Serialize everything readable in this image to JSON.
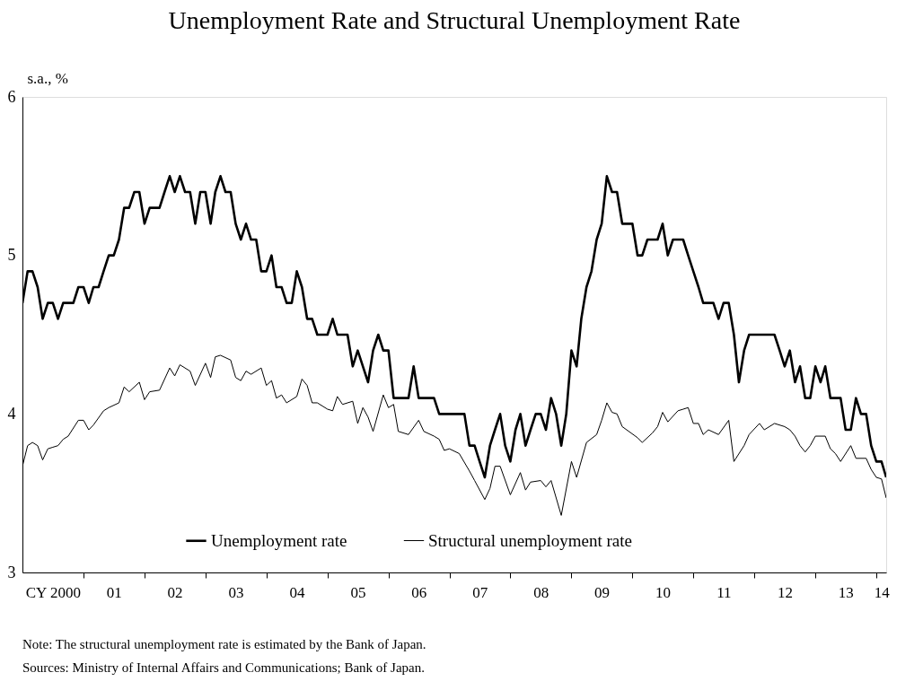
{
  "chart_data": {
    "type": "line",
    "title": "Unemployment Rate and Structural Unemployment Rate",
    "ylabel": "s.a., %",
    "annotations": [
      "Note: The structural unemployment rate is estimated by the Bank of Japan.",
      "Sources: Ministry of Internal Affairs and Communications; Bank of Japan."
    ],
    "x": [
      "2000-01",
      "2000-02",
      "2000-03",
      "2000-04",
      "2000-05",
      "2000-06",
      "2000-07",
      "2000-08",
      "2000-09",
      "2000-10",
      "2000-11",
      "2000-12",
      "2001-01",
      "2001-02",
      "2001-03",
      "2001-04",
      "2001-05",
      "2001-06",
      "2001-07",
      "2001-08",
      "2001-09",
      "2001-10",
      "2001-11",
      "2001-12",
      "2002-01",
      "2002-02",
      "2002-03",
      "2002-04",
      "2002-05",
      "2002-06",
      "2002-07",
      "2002-08",
      "2002-09",
      "2002-10",
      "2002-11",
      "2002-12",
      "2003-01",
      "2003-02",
      "2003-03",
      "2003-04",
      "2003-05",
      "2003-06",
      "2003-07",
      "2003-08",
      "2003-09",
      "2003-10",
      "2003-11",
      "2003-12",
      "2004-01",
      "2004-02",
      "2004-03",
      "2004-04",
      "2004-05",
      "2004-06",
      "2004-07",
      "2004-08",
      "2004-09",
      "2004-10",
      "2004-11",
      "2004-12",
      "2005-01",
      "2005-02",
      "2005-03",
      "2005-04",
      "2005-05",
      "2005-06",
      "2005-07",
      "2005-08",
      "2005-09",
      "2005-10",
      "2005-11",
      "2005-12",
      "2006-01",
      "2006-02",
      "2006-03",
      "2006-04",
      "2006-05",
      "2006-06",
      "2006-07",
      "2006-08",
      "2006-09",
      "2006-10",
      "2006-11",
      "2006-12",
      "2007-01",
      "2007-02",
      "2007-03",
      "2007-04",
      "2007-05",
      "2007-06",
      "2007-07",
      "2007-08",
      "2007-09",
      "2007-10",
      "2007-11",
      "2007-12",
      "2008-01",
      "2008-02",
      "2008-03",
      "2008-04",
      "2008-05",
      "2008-06",
      "2008-07",
      "2008-08",
      "2008-09",
      "2008-10",
      "2008-11",
      "2008-12",
      "2009-01",
      "2009-02",
      "2009-03",
      "2009-04",
      "2009-05",
      "2009-06",
      "2009-07",
      "2009-08",
      "2009-09",
      "2009-10",
      "2009-11",
      "2009-12",
      "2010-01",
      "2010-02",
      "2010-03",
      "2010-04",
      "2010-05",
      "2010-06",
      "2010-07",
      "2010-08",
      "2010-09",
      "2010-10",
      "2010-11",
      "2010-12",
      "2011-01",
      "2011-02",
      "2011-03",
      "2011-04",
      "2011-05",
      "2011-06",
      "2011-07",
      "2011-08",
      "2011-09",
      "2011-10",
      "2011-11",
      "2011-12",
      "2012-01",
      "2012-02",
      "2012-03",
      "2012-04",
      "2012-05",
      "2012-06",
      "2012-07",
      "2012-08",
      "2012-09",
      "2012-10",
      "2012-11",
      "2012-12",
      "2013-01",
      "2013-02",
      "2013-03",
      "2013-04",
      "2013-05",
      "2013-06",
      "2013-07",
      "2013-08",
      "2013-09",
      "2013-10",
      "2013-11",
      "2013-12",
      "2014-01",
      "2014-02",
      "2014-03"
    ],
    "series": [
      {
        "name": "Unemployment rate",
        "color": "#000000",
        "values": [
          4.7,
          4.9,
          4.9,
          4.8,
          4.6,
          4.7,
          4.7,
          4.6,
          4.7,
          4.7,
          4.7,
          4.8,
          4.8,
          4.7,
          4.8,
          4.8,
          4.9,
          5.0,
          5.0,
          5.1,
          5.3,
          5.3,
          5.4,
          5.4,
          5.2,
          5.3,
          5.3,
          5.3,
          5.4,
          5.5,
          5.4,
          5.5,
          5.4,
          5.4,
          5.2,
          5.4,
          5.4,
          5.2,
          5.4,
          5.5,
          5.4,
          5.4,
          5.2,
          5.1,
          5.2,
          5.1,
          5.1,
          4.9,
          4.9,
          5.0,
          4.8,
          4.8,
          4.7,
          4.7,
          4.9,
          4.8,
          4.6,
          4.6,
          4.5,
          4.5,
          4.5,
          4.6,
          4.5,
          4.5,
          4.5,
          4.3,
          4.4,
          4.3,
          4.2,
          4.4,
          4.5,
          4.4,
          4.4,
          4.1,
          4.1,
          4.1,
          4.1,
          4.3,
          4.1,
          4.1,
          4.1,
          4.1,
          4.0,
          4.0,
          4.0,
          4.0,
          4.0,
          4.0,
          3.8,
          3.8,
          3.7,
          3.6,
          3.8,
          3.9,
          4.0,
          3.8,
          3.7,
          3.9,
          4.0,
          3.8,
          3.9,
          4.0,
          4.0,
          3.9,
          4.1,
          4.0,
          3.8,
          4.0,
          4.4,
          4.3,
          4.6,
          4.8,
          4.9,
          5.1,
          5.2,
          5.5,
          5.4,
          5.4,
          5.2,
          5.2,
          5.2,
          5.0,
          5.0,
          5.1,
          5.1,
          5.1,
          5.2,
          5.0,
          5.1,
          5.1,
          5.1,
          5.0,
          4.9,
          4.8,
          4.7,
          4.7,
          4.7,
          4.6,
          4.7,
          4.7,
          4.5,
          4.2,
          4.4,
          4.5,
          4.5,
          4.5,
          4.5,
          4.5,
          4.5,
          4.4,
          4.3,
          4.4,
          4.2,
          4.3,
          4.1,
          4.1,
          4.3,
          4.2,
          4.3,
          4.1,
          4.1,
          4.1,
          3.9,
          3.9,
          4.1,
          4.0,
          4.0,
          3.8,
          3.7,
          3.7,
          3.6
        ]
      },
      {
        "name": "Structural unemployment rate",
        "color": "#000000",
        "x": [
          "2000-01",
          "2000-02",
          "2000-03",
          "2000-04",
          "2000-05",
          "2000-06",
          "2000-07",
          "2000-08",
          "2000-09",
          "2000-10",
          "2000-12",
          "2001-01",
          "2001-02",
          "2001-03",
          "2001-05",
          "2001-06",
          "2001-08",
          "2001-09",
          "2001-10",
          "2001-12",
          "2002-01",
          "2002-02",
          "2002-04",
          "2002-06",
          "2002-07",
          "2002-08",
          "2002-10",
          "2002-11",
          "2003-01",
          "2003-02",
          "2003-03",
          "2003-04",
          "2003-06",
          "2003-07",
          "2003-08",
          "2003-09",
          "2003-10",
          "2003-12",
          "2004-01",
          "2004-02",
          "2004-03",
          "2004-04",
          "2004-05",
          "2004-07",
          "2004-08",
          "2004-09",
          "2004-10",
          "2004-11",
          "2005-01",
          "2005-02",
          "2005-03",
          "2005-04",
          "2005-06",
          "2005-07",
          "2005-08",
          "2005-09",
          "2005-10",
          "2005-12",
          "2006-01",
          "2006-02",
          "2006-03",
          "2006-05",
          "2006-07",
          "2006-08",
          "2006-10",
          "2006-11",
          "2006-12",
          "2007-01",
          "2007-03",
          "2007-05",
          "2007-06",
          "2007-08",
          "2007-09",
          "2007-10",
          "2007-11",
          "2008-01",
          "2008-03",
          "2008-04",
          "2008-05",
          "2008-07",
          "2008-08",
          "2008-09",
          "2008-11",
          "2009-01",
          "2009-02",
          "2009-04",
          "2009-06",
          "2009-07",
          "2009-08",
          "2009-09",
          "2009-10",
          "2009-11",
          "2010-02",
          "2010-03",
          "2010-05",
          "2010-06",
          "2010-07",
          "2010-08",
          "2010-10",
          "2010-11",
          "2010-12",
          "2011-01",
          "2011-02",
          "2011-03",
          "2011-04",
          "2011-06",
          "2011-08",
          "2011-09",
          "2011-11",
          "2011-12",
          "2012-02",
          "2012-03",
          "2012-05",
          "2012-07",
          "2012-08",
          "2012-09",
          "2012-10",
          "2012-11",
          "2012-12",
          "2013-01",
          "2013-03",
          "2013-04",
          "2013-05",
          "2013-06",
          "2013-08",
          "2013-09",
          "2013-11",
          "2013-12",
          "2014-01",
          "2014-02",
          "2014-03"
        ],
        "values": [
          3.67,
          3.8,
          3.82,
          3.8,
          3.71,
          3.78,
          3.79,
          3.8,
          3.84,
          3.86,
          3.96,
          3.96,
          3.9,
          3.93,
          4.02,
          4.04,
          4.07,
          4.17,
          4.14,
          4.2,
          4.09,
          4.14,
          4.15,
          4.29,
          4.24,
          4.31,
          4.27,
          4.18,
          4.32,
          4.23,
          4.36,
          4.37,
          4.34,
          4.23,
          4.21,
          4.27,
          4.25,
          4.29,
          4.18,
          4.21,
          4.1,
          4.12,
          4.07,
          4.11,
          4.22,
          4.18,
          4.07,
          4.07,
          4.03,
          4.02,
          4.11,
          4.06,
          4.08,
          3.94,
          4.04,
          3.98,
          3.89,
          4.12,
          4.04,
          4.06,
          3.89,
          3.87,
          3.96,
          3.89,
          3.86,
          3.84,
          3.77,
          3.78,
          3.75,
          3.64,
          3.58,
          3.46,
          3.53,
          3.67,
          3.67,
          3.49,
          3.63,
          3.52,
          3.57,
          3.58,
          3.54,
          3.58,
          3.36,
          3.7,
          3.6,
          3.82,
          3.87,
          3.96,
          4.07,
          4.01,
          4.0,
          3.92,
          3.85,
          3.82,
          3.88,
          3.92,
          4.01,
          3.95,
          4.02,
          4.03,
          4.04,
          3.94,
          3.94,
          3.87,
          3.9,
          3.87,
          3.96,
          3.7,
          3.8,
          3.87,
          3.94,
          3.9,
          3.94,
          3.92,
          3.9,
          3.86,
          3.8,
          3.76,
          3.8,
          3.86,
          3.86,
          3.78,
          3.75,
          3.7,
          3.8,
          3.72,
          3.72,
          3.65,
          3.6,
          3.59,
          3.47
        ]
      }
    ],
    "xlim": [
      "2000-01",
      "2014-03"
    ],
    "xticks": [
      {
        "value": "2001-01",
        "label": null
      },
      {
        "value": "2002-01",
        "label": null
      },
      {
        "value": "2003-01",
        "label": null
      },
      {
        "value": "2004-01",
        "label": null
      },
      {
        "value": "2005-01",
        "label": null
      },
      {
        "value": "2006-01",
        "label": null
      },
      {
        "value": "2007-01",
        "label": null
      },
      {
        "value": "2008-01",
        "label": null
      },
      {
        "value": "2009-01",
        "label": null
      },
      {
        "value": "2010-01",
        "label": null
      },
      {
        "value": "2011-01",
        "label": null
      },
      {
        "value": "2012-01",
        "label": null
      },
      {
        "value": "2013-01",
        "label": null
      },
      {
        "value": "2014-01",
        "label": null
      },
      {
        "value": "2000-07",
        "label": "CY 2000"
      },
      {
        "value": "2001-07",
        "label": "01"
      },
      {
        "value": "2002-07",
        "label": "02"
      },
      {
        "value": "2003-07",
        "label": "03"
      },
      {
        "value": "2004-07",
        "label": "04"
      },
      {
        "value": "2005-07",
        "label": "05"
      },
      {
        "value": "2006-07",
        "label": "06"
      },
      {
        "value": "2007-07",
        "label": "07"
      },
      {
        "value": "2008-07",
        "label": "08"
      },
      {
        "value": "2009-07",
        "label": "09"
      },
      {
        "value": "2010-07",
        "label": "10"
      },
      {
        "value": "2011-07",
        "label": "11"
      },
      {
        "value": "2012-07",
        "label": "12"
      },
      {
        "value": "2013-07",
        "label": "13"
      },
      {
        "value": "2014-02",
        "label": "14"
      }
    ],
    "ylim": [
      3,
      6
    ],
    "yticks": [
      3,
      4,
      5,
      6
    ],
    "grid": false,
    "legend": "bottom",
    "marker": "none",
    "line_style": "solid"
  }
}
